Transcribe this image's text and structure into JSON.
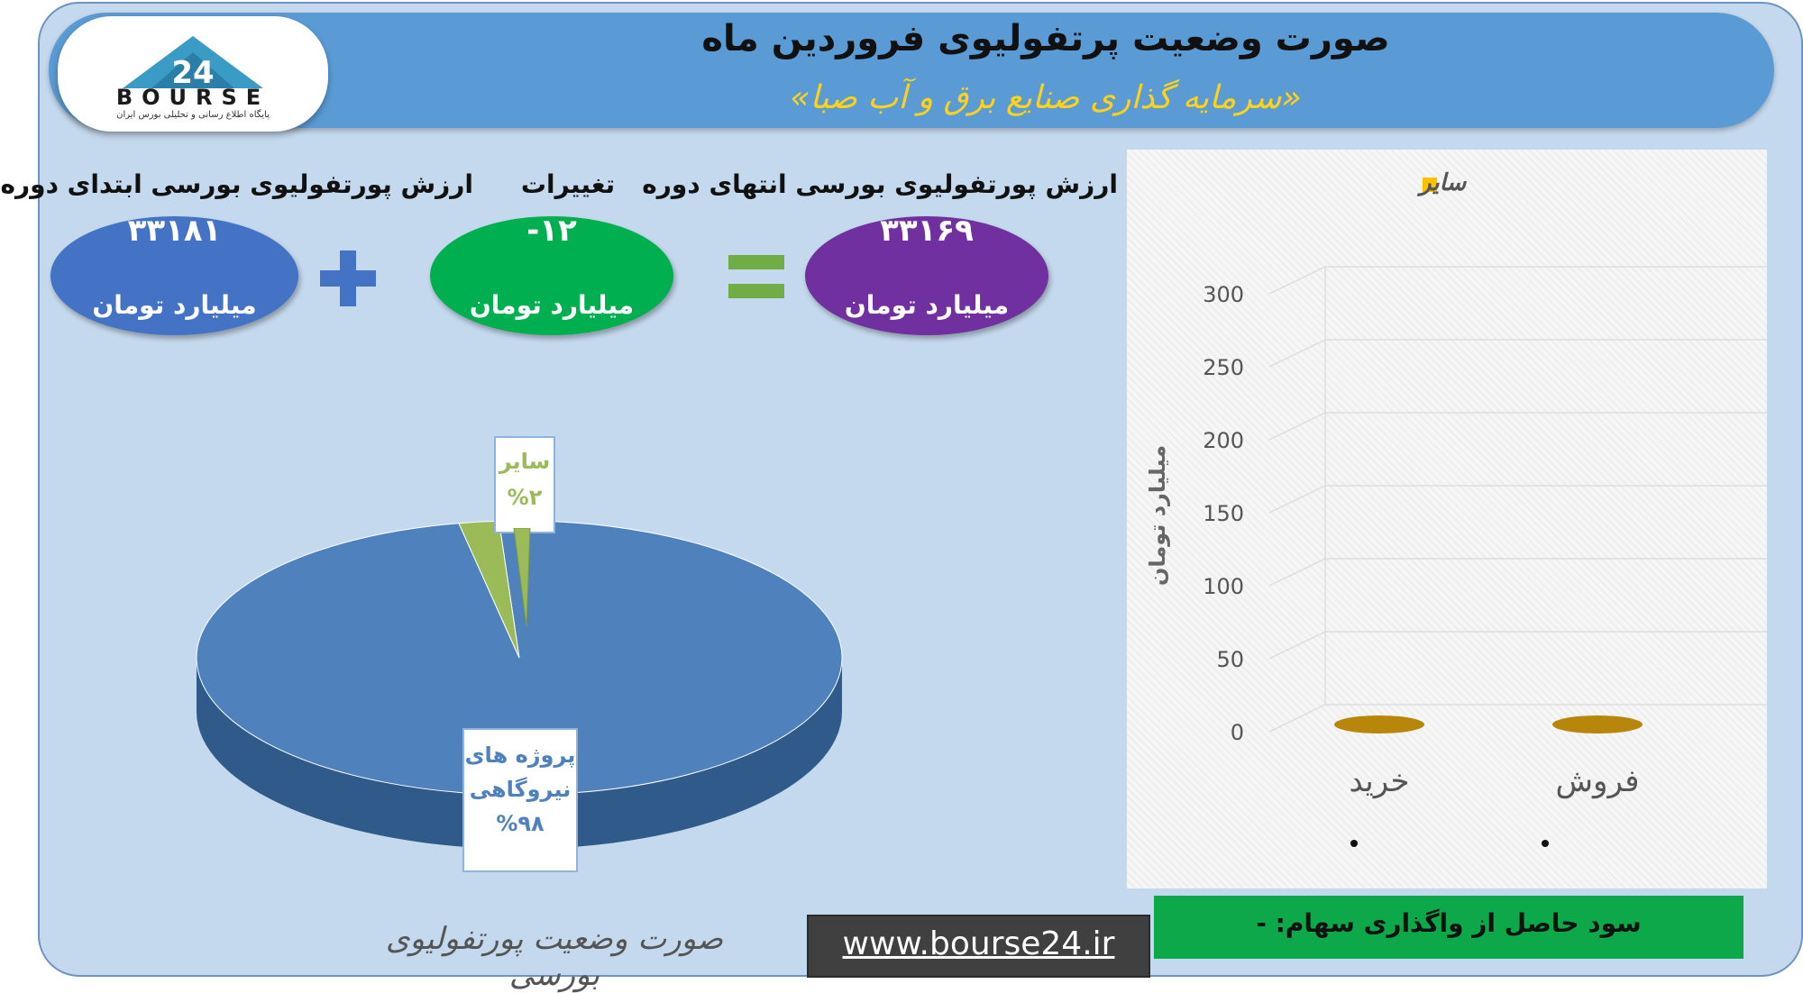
{
  "header": {
    "title": "صورت وضعیت پرتفولیوی فروردین ماه",
    "subtitle": "«سرمایه گذاری صنایع برق و آب صبا»"
  },
  "logo": {
    "text": "BOURSE",
    "number": "24",
    "tagline": "پایگاه اطلاع رسانی و تحلیلی بورس ایران"
  },
  "summary": {
    "start": {
      "label": "ارزش پورتفولیوی بورسی ابتدای دوره",
      "value": "۳۳۱۸۱",
      "unit": "میلیارد تومان",
      "color": "#4472c4"
    },
    "change": {
      "label": "تغییرات",
      "value": "-۱۲",
      "unit": "میلیارد تومان",
      "color": "#00b050"
    },
    "end": {
      "label": "ارزش پورتفولیوی بورسی انتهای دوره",
      "value": "۳۳۱۶۹",
      "unit": "میلیارد تومان",
      "color": "#7030a0"
    },
    "plus_color": "#4472c4",
    "equals_color": "#70ad47"
  },
  "footer": {
    "caption": "صورت وضعیت پورتفولیوی بورسی",
    "url": "www.bourse24.ir",
    "profit_text": "سود حاصل از واگذاری سهام: -"
  },
  "chart_data": [
    {
      "type": "pie",
      "title": "",
      "slices": [
        {
          "label": "پروژه های نیروگاهی",
          "label_line1": "پروژه های",
          "label_line2": "نیروگاهی",
          "value": 98,
          "percent_text": "%۹۸",
          "color": "#4f81bd"
        },
        {
          "label": "سایر",
          "value": 2,
          "percent_text": "%۲",
          "color": "#9bbb59"
        }
      ]
    },
    {
      "type": "bar",
      "categories": [
        "خرید",
        "فروش"
      ],
      "series": [
        {
          "name": "سایر",
          "values": [
            0,
            0
          ],
          "color": "#b8860b"
        }
      ],
      "ylabel": "میلیارد تومان",
      "ylim": [
        0,
        300
      ],
      "yticks": [
        0,
        50,
        100,
        150,
        200,
        250,
        300
      ],
      "legend_position": "top"
    }
  ]
}
